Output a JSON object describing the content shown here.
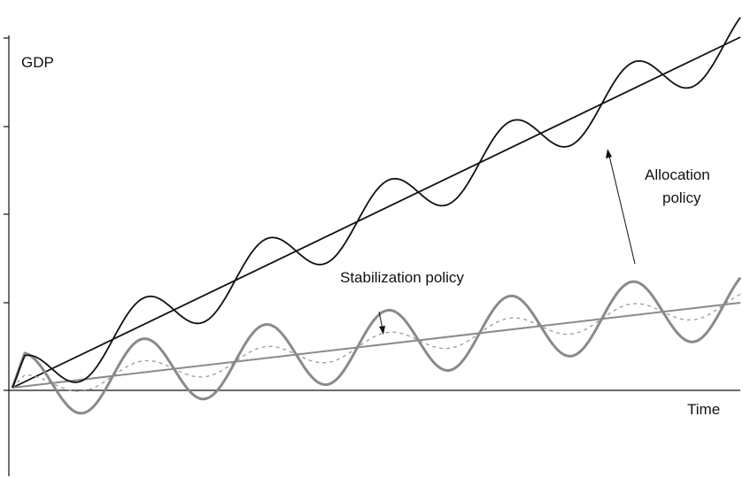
{
  "labels": {
    "y_axis": "GDP",
    "x_axis": "Time",
    "stabilization": "Stabilization policy",
    "allocation_line1": "Allocation",
    "allocation_line2": "policy"
  },
  "colors": {
    "dark": "#111111",
    "gray": "#8a8a8a",
    "dashed": "#9a9a9a"
  }
}
